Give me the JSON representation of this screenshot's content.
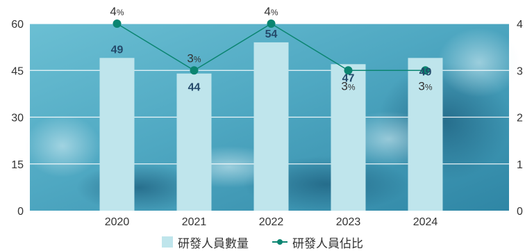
{
  "chart_data": {
    "type": "bar",
    "categories": [
      "2020",
      "2021",
      "2022",
      "2023",
      "2024"
    ],
    "series": [
      {
        "name": "研發人員數量",
        "type": "bar",
        "axis": "left",
        "values": [
          49,
          44,
          54,
          47,
          49
        ],
        "color": "#bfe5ec"
      },
      {
        "name": "研發人員佔比",
        "type": "line",
        "axis": "right",
        "values": [
          4,
          3,
          4,
          3,
          3
        ],
        "value_suffix": "%",
        "color": "#0b8571"
      }
    ],
    "y_left": {
      "ticks": [
        "0",
        "15",
        "30",
        "45",
        "60"
      ],
      "ylim": [
        0,
        60
      ]
    },
    "y_right": {
      "ticks": [
        "0",
        "1",
        "2",
        "3",
        "4"
      ],
      "ylim": [
        0,
        4
      ]
    },
    "grid": true,
    "legend_position": "bottom-center",
    "colors": {
      "bar_label": "#244a6b",
      "line_label": "#333333",
      "axis_text": "#333333",
      "grid": "#ffffff",
      "background_water": "#5fb3c9"
    }
  },
  "legend": {
    "bar_label": "研發人員數量",
    "line_label": "研發人員佔比"
  }
}
